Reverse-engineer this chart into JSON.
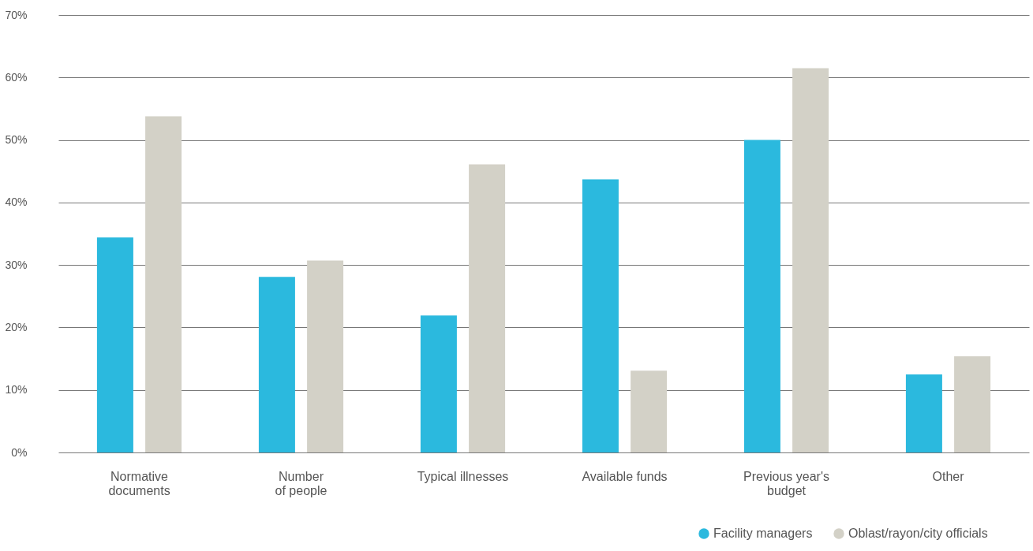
{
  "chart_data": {
    "type": "bar",
    "categories": [
      "Normative\ndocuments",
      "Number\nof people",
      "Typical illnesses",
      "Available funds",
      "Previous year's\nbudget",
      "Other"
    ],
    "series": [
      {
        "name": "Facility managers",
        "color": "#2bb9de",
        "values": [
          34.4,
          28.1,
          21.9,
          43.7,
          50.0,
          12.5
        ]
      },
      {
        "name": "Oblast/rayon/city officials",
        "color": "#d3d1c7",
        "values": [
          53.8,
          30.7,
          46.1,
          13.1,
          61.5,
          15.4
        ]
      }
    ],
    "ylim": [
      0,
      70
    ],
    "yticks": [
      {
        "value": 0,
        "label": "0%"
      },
      {
        "value": 10,
        "label": "10%"
      },
      {
        "value": 20,
        "label": "20%"
      },
      {
        "value": 30,
        "label": "30%"
      },
      {
        "value": 40,
        "label": "40%"
      },
      {
        "value": 50,
        "label": "50%"
      },
      {
        "value": 60,
        "label": "60%"
      },
      {
        "value": 70,
        "label": "70%"
      }
    ],
    "grid": "y",
    "legend": "bottom right",
    "marker": "circle"
  }
}
